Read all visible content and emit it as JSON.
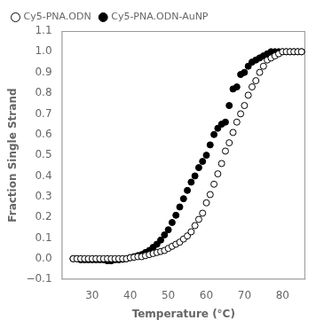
{
  "chart_data": {
    "type": "scatter",
    "xlabel": "Temperature (°C)",
    "ylabel": "Fraction Single Strand",
    "xlim": [
      22,
      86
    ],
    "ylim": [
      -0.1,
      1.1
    ],
    "xticks": [
      30,
      40,
      50,
      60,
      70,
      80
    ],
    "yticks": [
      {
        "value": -0.1,
        "label": "−0.1"
      },
      {
        "value": 0.0,
        "label": "0.0"
      },
      0.1,
      0.2,
      0.3,
      0.4,
      0.5,
      0.6,
      0.7,
      0.8,
      0.9,
      {
        "value": 1.0,
        "label": "1.0"
      },
      1.1
    ],
    "grid": false,
    "legend": "upper left",
    "series": [
      {
        "name": "Cy5-PNA.ODN",
        "color": "black",
        "marker": "open_circle",
        "x": [
          25,
          26,
          27,
          28,
          29,
          30,
          31,
          32,
          33,
          34,
          35,
          36,
          37,
          38,
          39,
          40,
          41,
          42,
          43,
          44,
          45,
          46,
          47,
          48,
          49,
          50,
          51,
          52,
          53,
          54,
          55,
          56,
          57,
          58,
          59,
          60,
          61,
          62,
          63,
          64,
          65,
          66,
          67,
          68,
          69,
          70,
          71,
          72,
          73,
          74,
          75,
          76,
          77,
          78,
          79,
          80,
          81,
          82,
          83,
          84,
          85
        ],
        "values": [
          0.0,
          0.0,
          0.0,
          0.0,
          0.0,
          0.0,
          0.0,
          0.0,
          0.0,
          0.0,
          0.0,
          0.0,
          0.0,
          0.0,
          0.0,
          0.005,
          0.007,
          0.01,
          0.01,
          0.015,
          0.02,
          0.025,
          0.03,
          0.035,
          0.04,
          0.05,
          0.06,
          0.07,
          0.08,
          0.095,
          0.11,
          0.13,
          0.16,
          0.19,
          0.22,
          0.27,
          0.31,
          0.36,
          0.41,
          0.46,
          0.52,
          0.56,
          0.61,
          0.66,
          0.7,
          0.74,
          0.79,
          0.83,
          0.86,
          0.9,
          0.93,
          0.96,
          0.97,
          0.98,
          0.99,
          1.0,
          1.0,
          1.0,
          1.0,
          1.0,
          1.0
        ]
      },
      {
        "name": "Cy5-PNA.ODN-AuNP",
        "color": "black",
        "marker": "circle",
        "x": [
          25,
          26,
          27,
          28,
          29,
          30,
          31,
          32,
          33,
          34,
          35,
          36,
          37,
          38,
          39,
          40,
          41,
          42,
          43,
          44,
          45,
          46,
          47,
          48,
          49,
          50,
          51,
          52,
          53,
          54,
          55,
          56,
          57,
          58,
          59,
          60,
          61,
          62,
          63,
          64,
          65,
          66,
          67,
          68,
          69,
          70,
          71,
          72,
          73,
          74,
          75,
          76,
          77,
          78,
          79,
          80,
          81,
          82,
          83,
          84,
          85
        ],
        "values": [
          0.0,
          0.0,
          -0.005,
          -0.005,
          -0.005,
          -0.005,
          -0.005,
          -0.005,
          -0.005,
          -0.01,
          -0.01,
          -0.005,
          -0.005,
          -0.003,
          0.0,
          0.005,
          0.01,
          0.015,
          0.02,
          0.03,
          0.04,
          0.055,
          0.07,
          0.09,
          0.115,
          0.14,
          0.175,
          0.21,
          0.25,
          0.29,
          0.33,
          0.37,
          0.4,
          0.44,
          0.47,
          0.5,
          0.55,
          0.6,
          0.63,
          0.65,
          0.66,
          0.74,
          0.82,
          0.83,
          0.89,
          0.9,
          0.93,
          0.95,
          0.96,
          0.97,
          0.98,
          0.99,
          1.0,
          1.0,
          1.0,
          1.0,
          1.0,
          1.0,
          1.0,
          1.0,
          1.0
        ]
      }
    ]
  }
}
